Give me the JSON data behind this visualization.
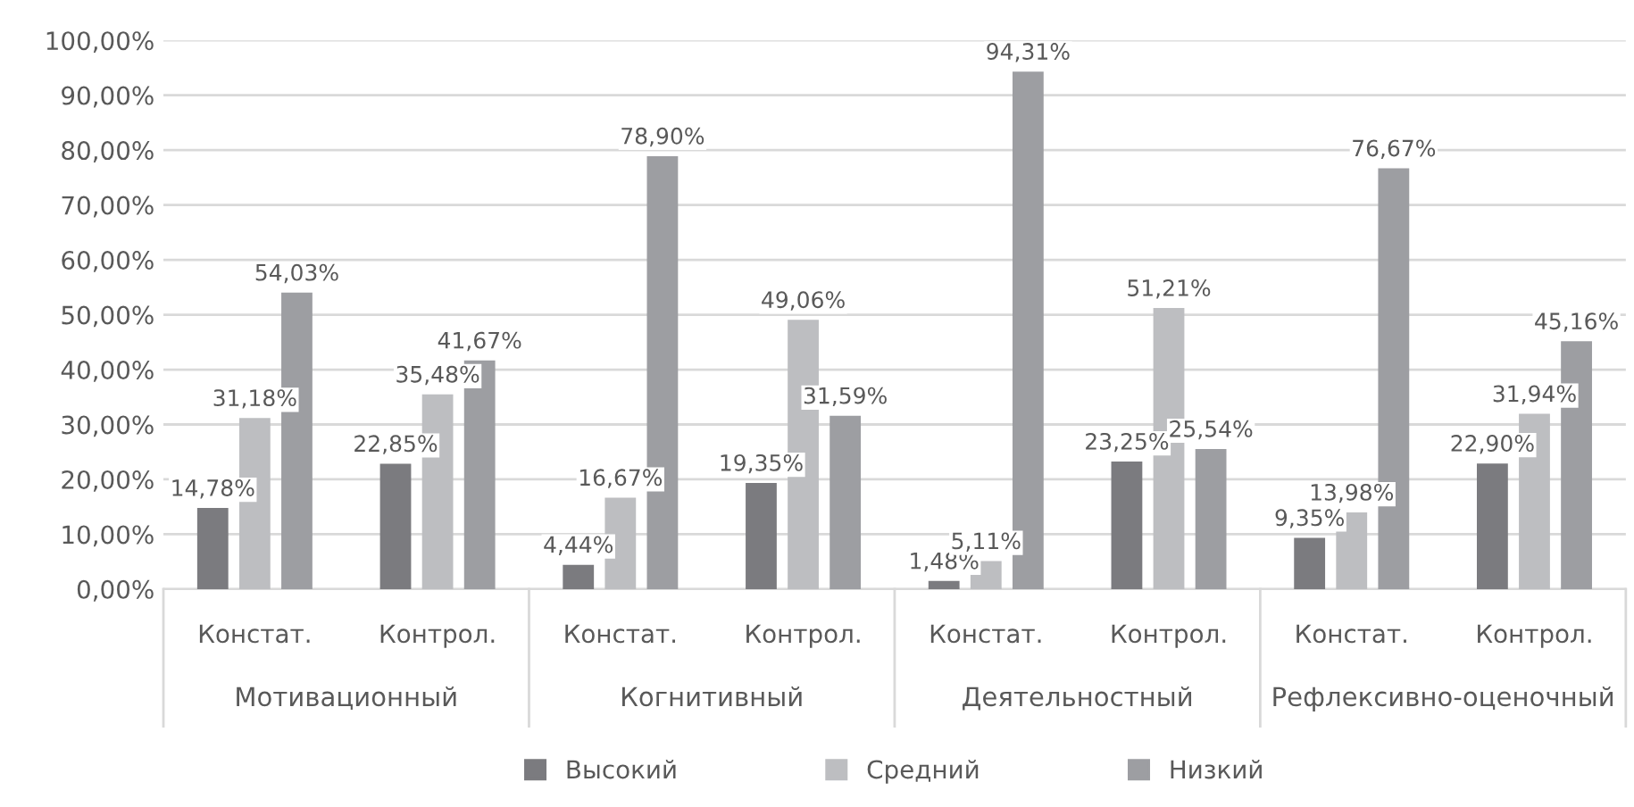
{
  "chart_data": {
    "type": "bar",
    "categories": [
      "Констат.",
      "Контрол.",
      "Констат.",
      "Контрол.",
      "Констат.",
      "Контрол.",
      "Констат.",
      "Контрол."
    ],
    "annotations": [
      "Мотивационный",
      "Когнитивный",
      "Деятельностный",
      "Рефлексивно-оценочный"
    ],
    "series": [
      {
        "name": "Высокий",
        "color": "#7b7b7f",
        "values": [
          14.78,
          22.85,
          4.44,
          19.35,
          1.48,
          23.25,
          9.35,
          22.9
        ],
        "value_labels": [
          "14,78%",
          "22,85%",
          "4,44%",
          "19,35%",
          "1,48%",
          "23,25%",
          "9,35%",
          "22,90%"
        ]
      },
      {
        "name": "Средний",
        "color": "#bdbec1",
        "values": [
          31.18,
          35.48,
          16.67,
          49.06,
          5.11,
          51.21,
          13.98,
          31.94
        ],
        "value_labels": [
          "31,18%",
          "35,48%",
          "16,67%",
          "49,06%",
          "5,11%",
          "51,21%",
          "13,98%",
          "31,94%"
        ]
      },
      {
        "name": "Низкий",
        "color": "#9d9ea2",
        "values": [
          54.03,
          41.67,
          78.9,
          31.59,
          94.31,
          25.54,
          76.67,
          45.16
        ],
        "value_labels": [
          "54,03%",
          "41,67%",
          "78,90%",
          "31,59%",
          "94,31%",
          "25,54%",
          "76,67%",
          "45,16%"
        ]
      }
    ],
    "ylim": [
      0,
      100
    ],
    "yticks": [
      {
        "value": 0,
        "label": "0,00%"
      },
      {
        "value": 10,
        "label": "10,00%"
      },
      {
        "value": 20,
        "label": "20,00%"
      },
      {
        "value": 30,
        "label": "30,00%"
      },
      {
        "value": 40,
        "label": "40,00%"
      },
      {
        "value": 50,
        "label": "50,00%"
      },
      {
        "value": 60,
        "label": "60,00%"
      },
      {
        "value": 70,
        "label": "70,00%"
      },
      {
        "value": 80,
        "label": "80,00%"
      },
      {
        "value": 90,
        "label": "90,00%"
      },
      {
        "value": 100,
        "label": "100,00%"
      }
    ],
    "grid": "y",
    "legend": "bottom"
  }
}
